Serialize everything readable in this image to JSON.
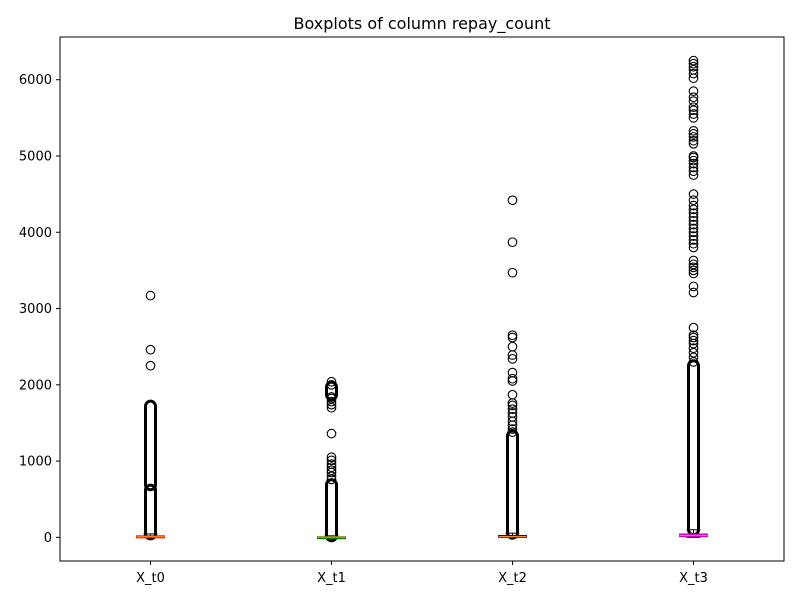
{
  "chart_data": {
    "type": "boxplot",
    "title": "Boxplots of column repay_count",
    "xlabel": "",
    "ylabel": "",
    "ylim": [
      -310,
      6560
    ],
    "yticks": [
      0,
      1000,
      2000,
      3000,
      4000,
      5000,
      6000
    ],
    "grid": false,
    "categories": [
      "X_t0",
      "X_t1",
      "X_t2",
      "X_t3"
    ],
    "series": [
      {
        "category": "X_t0",
        "color": "#ff0000",
        "q1": 3,
        "median": 8,
        "q3": 20,
        "whisker_low": 0,
        "whisker_high": 45,
        "outlier_bands": [
          [
            45,
            620
          ],
          [
            690,
            1720
          ]
        ],
        "outliers": [
          2250,
          2460,
          3170
        ]
      },
      {
        "category": "X_t1",
        "color": "#008000",
        "q1": 1,
        "median": 3,
        "q3": 9,
        "whisker_low": 0,
        "whisker_high": 20,
        "outlier_bands": [
          [
            20,
            690
          ],
          [
            1870,
            1970
          ]
        ],
        "outliers": [
          760,
          800,
          850,
          880,
          920,
          960,
          1010,
          1050,
          1360,
          1700,
          1740,
          1780,
          1820,
          1840,
          2000,
          2040
        ]
      },
      {
        "category": "X_t2",
        "color": "#0000ff",
        "q1": 4,
        "median": 10,
        "q3": 25,
        "whisker_low": 0,
        "whisker_high": 55,
        "outlier_bands": [
          [
            55,
            1330
          ]
        ],
        "outliers": [
          1380,
          1420,
          1470,
          1520,
          1580,
          1630,
          1680,
          1730,
          1760,
          1870,
          2050,
          2080,
          2160,
          2340,
          2390,
          2500,
          2620,
          2650,
          3470,
          3870,
          4420
        ]
      },
      {
        "category": "X_t3",
        "color": "#cc00cc",
        "q1": 10,
        "median": 25,
        "q3": 45,
        "whisker_low": 0,
        "whisker_high": 100,
        "outlier_bands": [
          [
            100,
            2250
          ]
        ],
        "outliers": [
          2300,
          2360,
          2420,
          2480,
          2540,
          2580,
          2620,
          2650,
          2750,
          3210,
          3290,
          3460,
          3500,
          3540,
          3580,
          3630,
          3800,
          3850,
          3900,
          3950,
          4000,
          4050,
          4100,
          4150,
          4200,
          4250,
          4300,
          4350,
          4420,
          4500,
          4750,
          4800,
          4850,
          4900,
          4940,
          4980,
          5000,
          5160,
          5200,
          5250,
          5290,
          5330,
          5500,
          5550,
          5600,
          5640,
          5720,
          5770,
          5850,
          6020,
          6080,
          6130,
          6170,
          6210,
          6250
        ]
      }
    ]
  }
}
